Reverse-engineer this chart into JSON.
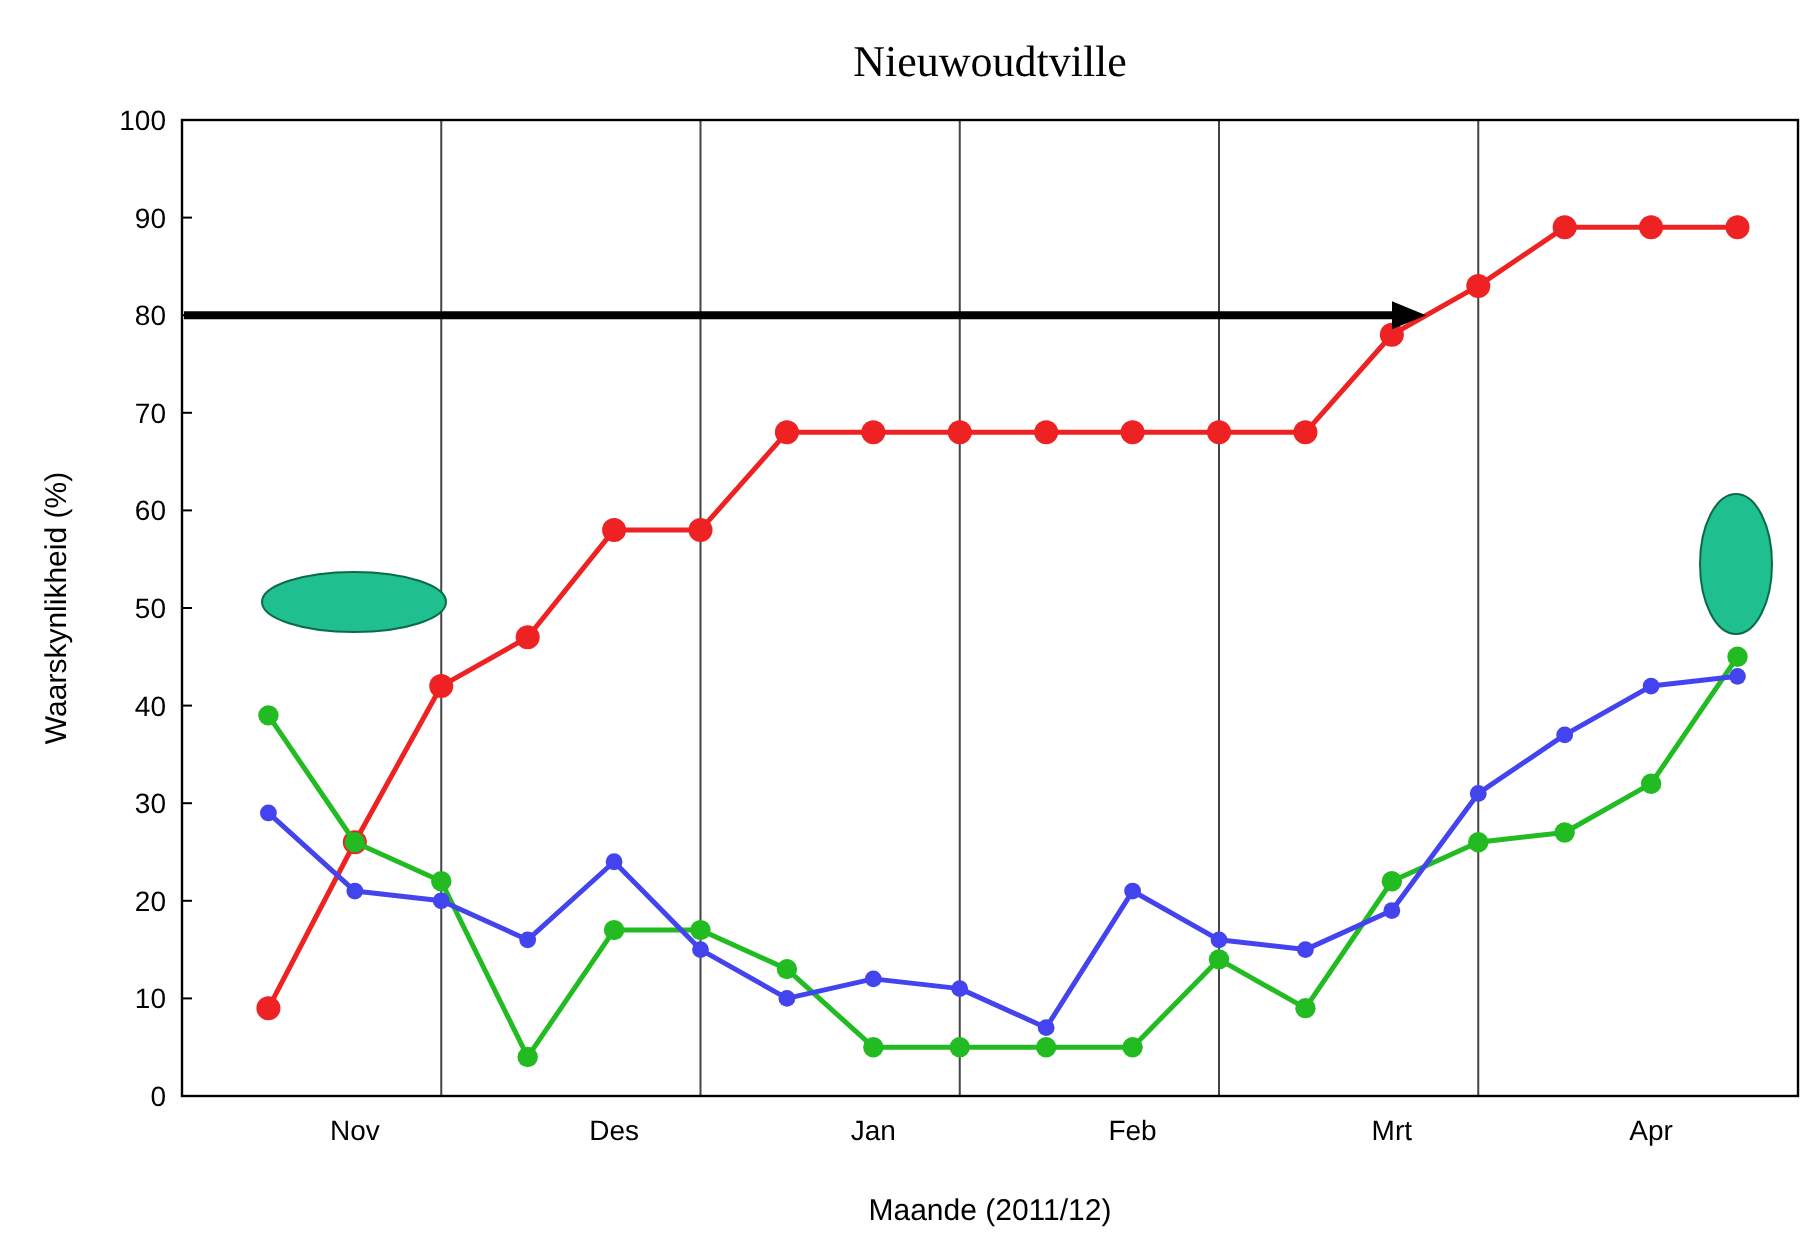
{
  "chart_data": {
    "type": "line",
    "title": "Nieuwoudtville",
    "xlabel": "Maande (2011/12)",
    "ylabel": "Waarskynlikheid (%)",
    "categories": [
      null,
      "Nov",
      null,
      null,
      "Des",
      null,
      null,
      "Jan",
      null,
      null,
      "Feb",
      null,
      null,
      "Mrt",
      null,
      null,
      "Apr",
      null
    ],
    "ylim": [
      0,
      100
    ],
    "yticks": [
      0,
      10,
      20,
      30,
      40,
      50,
      60,
      70,
      80,
      90,
      100
    ],
    "grid": "x",
    "marker": "circle",
    "line_style": "solid",
    "series": [
      {
        "color": "#ee2222",
        "values": [
          9,
          26,
          42,
          47,
          58,
          58,
          68,
          68,
          68,
          68,
          68,
          68,
          68,
          78,
          83,
          89,
          89,
          89
        ]
      },
      {
        "color": "#22bb22",
        "values": [
          39,
          26,
          22,
          4,
          17,
          17,
          13,
          5,
          5,
          5,
          5,
          14,
          9,
          22,
          26,
          27,
          32,
          45
        ]
      },
      {
        "color": "#4444ee",
        "values": [
          29,
          21,
          20,
          16,
          24,
          15,
          10,
          12,
          11,
          7,
          21,
          16,
          15,
          19,
          31,
          37,
          42,
          43
        ]
      }
    ]
  }
}
